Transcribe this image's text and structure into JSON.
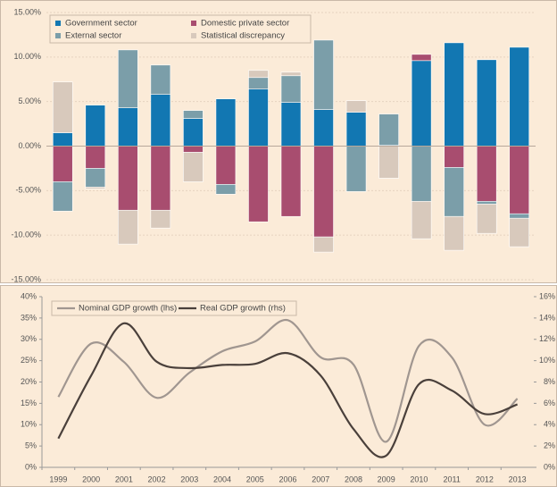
{
  "chart_data": [
    {
      "type": "bar",
      "stacked": true,
      "categories": [
        null,
        null,
        null,
        null,
        null,
        null,
        null,
        null,
        null,
        null,
        null,
        null,
        null,
        null,
        null
      ],
      "series": [
        {
          "name": "Government sector",
          "color": "#1277b2",
          "values": [
            1.5,
            4.6,
            4.3,
            5.8,
            3.1,
            5.3,
            6.4,
            4.9,
            4.1,
            3.8,
            0.1,
            9.6,
            11.6,
            9.7,
            11.1
          ]
        },
        {
          "name": "Domestic private sector",
          "color": "#a84d6f",
          "values": [
            -4.0,
            -2.5,
            -7.2,
            -7.2,
            -0.7,
            -4.3,
            -8.5,
            -7.9,
            -10.2,
            0,
            0,
            0.7,
            -2.4,
            -6.2,
            -7.6
          ]
        },
        {
          "name": "External sector",
          "color": "#7b9ea9",
          "values": [
            -3.3,
            -2.1,
            6.5,
            3.3,
            0.9,
            -1.1,
            1.3,
            3.0,
            7.8,
            -5.1,
            3.5,
            -6.2,
            -5.5,
            -0.3,
            -0.5
          ]
        },
        {
          "name": "Statistical discrepancy",
          "color": "#d8c9bc",
          "values": [
            5.7,
            -0.2,
            -3.8,
            -2.0,
            -3.3,
            0,
            0.8,
            0.4,
            -1.7,
            1.3,
            -3.6,
            -4.2,
            -3.8,
            -3.3,
            -3.2
          ]
        }
      ],
      "ylim": [
        -15,
        15
      ],
      "yticks": [
        {
          "value": -15,
          "label": "-15.00%"
        },
        {
          "value": -10,
          "label": "-10.00%"
        },
        {
          "value": -5,
          "label": "-5.00%"
        },
        {
          "value": 0,
          "label": "0.00%"
        },
        {
          "value": 5,
          "label": "5.00%"
        },
        {
          "value": 10,
          "label": "10.00%"
        },
        {
          "value": 15,
          "label": "15.00%"
        }
      ],
      "grid": true,
      "legend": "top-left"
    },
    {
      "type": "line",
      "categories": [
        "1999",
        "2000",
        "2001",
        "2002",
        "2003",
        "2004",
        "2005",
        "2006",
        "2007",
        "2008",
        "2009",
        "2010",
        "2011",
        "2012",
        "2013"
      ],
      "series": [
        {
          "name": "Nominal GDP growth (lhs)",
          "color": "#a09690",
          "values": [
            16.5,
            29,
            24.7,
            16.3,
            22.2,
            27.2,
            29.5,
            34.5,
            25.8,
            24.1,
            6,
            28.5,
            25.8,
            10,
            16.1
          ]
        },
        {
          "name": "Real GDP growth (rhs)",
          "color": "#4a403b",
          "axis": "y2",
          "values": [
            2.7,
            8.6,
            13.5,
            9.9,
            9.3,
            9.6,
            9.7,
            10.7,
            8.6,
            3.6,
            1.1,
            7.8,
            7.2,
            5,
            5.9
          ]
        }
      ],
      "ylim": [
        0,
        40
      ],
      "yticks": [
        {
          "value": 0,
          "label": "0%"
        },
        {
          "value": 5,
          "label": "5%"
        },
        {
          "value": 10,
          "label": "10%"
        },
        {
          "value": 15,
          "label": "15%"
        },
        {
          "value": 20,
          "label": "20%"
        },
        {
          "value": 25,
          "label": "25%"
        },
        {
          "value": 30,
          "label": "30%"
        },
        {
          "value": 35,
          "label": "35%"
        },
        {
          "value": 40,
          "label": "40%"
        }
      ],
      "y2lim": [
        0,
        16
      ],
      "y2ticks": [
        {
          "value": 0,
          "label": "0%"
        },
        {
          "value": 2,
          "label": "2%"
        },
        {
          "value": 4,
          "label": "4%"
        },
        {
          "value": 6,
          "label": "6%"
        },
        {
          "value": 8,
          "label": "8%"
        },
        {
          "value": 10,
          "label": "10%"
        },
        {
          "value": 12,
          "label": "12%"
        },
        {
          "value": 14,
          "label": "14%"
        },
        {
          "value": 16,
          "label": "16%"
        }
      ],
      "legend": "top-left"
    }
  ]
}
